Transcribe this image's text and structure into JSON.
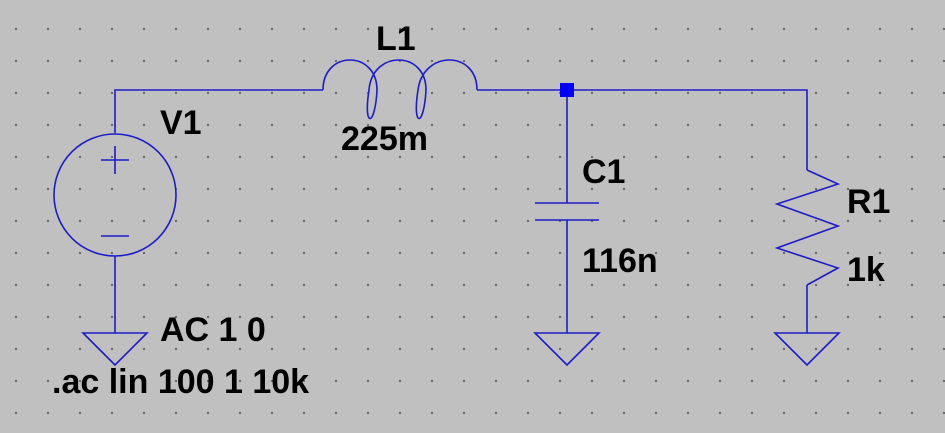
{
  "colors": {
    "background": "#c0c0c0",
    "grid_dot": "#555555",
    "wire": "#1c1cc8",
    "junction": "#0000ff",
    "text": "#000000"
  },
  "components": {
    "v1": {
      "name": "V1",
      "value": "AC 1 0"
    },
    "l1": {
      "name": "L1",
      "value": "225m"
    },
    "c1": {
      "name": "C1",
      "value": "116n"
    },
    "r1": {
      "name": "R1",
      "value": "1k"
    }
  },
  "directive": ".ac lin 100 1 10k"
}
